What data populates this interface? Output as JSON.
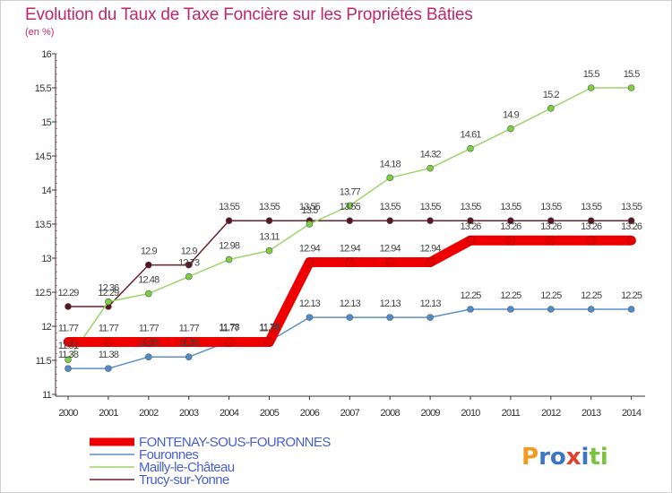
{
  "chart_data": {
    "type": "line",
    "title": "Evolution du Taux de Taxe Foncière sur les Propriétés Bâties",
    "ylabel": "(en %)",
    "xlabel": "",
    "ylim": [
      11,
      16
    ],
    "yticks": [
      11,
      11.5,
      12,
      12.5,
      13,
      13.5,
      14,
      14.5,
      15,
      15.5,
      16
    ],
    "ytick_labels": [
      "11",
      "11.5",
      "12",
      "12.5",
      "13",
      "13.5",
      "14",
      "14.5",
      "15",
      "15.5",
      "16"
    ],
    "categories": [
      "2000",
      "2001",
      "2002",
      "2003",
      "2004",
      "2005",
      "2006",
      "2007",
      "2008",
      "2009",
      "2010",
      "2011",
      "2012",
      "2013",
      "2014"
    ],
    "series": [
      {
        "name": "Trucy-sur-Yonne",
        "color": "#6b1f2a",
        "marker": "#5a1620",
        "values": [
          12.29,
          12.29,
          12.9,
          12.9,
          13.55,
          13.55,
          13.55,
          13.55,
          13.55,
          13.55,
          13.55,
          13.55,
          13.55,
          13.55,
          13.55
        ],
        "labels": [
          "12.29",
          "12.29",
          "12.9",
          "12.9",
          "13.55",
          "13.55",
          "13.55",
          "13.55",
          "13.55",
          "13.55",
          "13.55",
          "13.55",
          "13.55",
          "13.55",
          "13.55"
        ]
      },
      {
        "name": "Mailly-le-Château",
        "color": "#9ad56a",
        "marker": "#7ccf3e",
        "values": [
          11.51,
          12.36,
          12.48,
          12.73,
          12.98,
          13.11,
          13.5,
          13.77,
          14.18,
          14.32,
          14.61,
          14.9,
          15.2,
          15.5,
          15.5
        ],
        "labels": [
          "11.51",
          "12.36",
          "12.48",
          "12.73",
          "12.98",
          "13.11",
          "13.5",
          "13.77",
          "14.18",
          "14.32",
          "14.61",
          "14.9",
          "15.2",
          "15.5",
          "15.5"
        ]
      },
      {
        "name": "Fouronnes",
        "color": "#5b8fc7",
        "marker": "#4f8ccc",
        "values": [
          11.38,
          11.38,
          11.55,
          11.55,
          11.78,
          11.78,
          12.13,
          12.13,
          12.13,
          12.13,
          12.25,
          12.25,
          12.25,
          12.25,
          12.25
        ],
        "labels": [
          "11.38",
          "11.38",
          "11.55",
          "11.55",
          "11.78",
          "11.78",
          "12.13",
          "12.13",
          "12.13",
          "12.13",
          "12.25",
          "12.25",
          "12.25",
          "12.25",
          "12.25"
        ]
      },
      {
        "name": "FONTENAY-SOUS-FOURONNES",
        "color": "#ee0000",
        "marker": "#e60000",
        "values": [
          11.77,
          11.77,
          11.77,
          11.77,
          11.77,
          11.77,
          12.94,
          12.94,
          12.94,
          12.94,
          13.26,
          13.26,
          13.26,
          13.26,
          13.26
        ],
        "labels": [
          "11.77",
          "11.77",
          "11.77",
          "11.77",
          "11.77",
          "11.77",
          "12.94",
          "12.94",
          "12.94",
          "12.94",
          "13.26",
          "13.26",
          "13.26",
          "13.26",
          "13.26"
        ]
      }
    ],
    "legend": [
      "FONTENAY-SOUS-FOURONNES",
      "Fouronnes",
      "Mailly-le-Château",
      "Trucy-sur-Yonne"
    ],
    "legend_position": "bottom-left",
    "grid": false
  },
  "branding": {
    "logo_text": "Prox i ti"
  }
}
